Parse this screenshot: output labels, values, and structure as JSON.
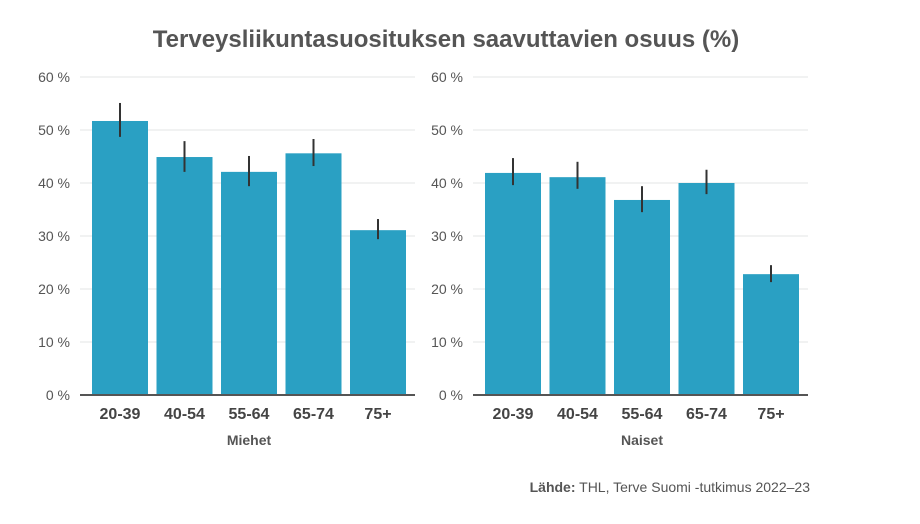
{
  "chart_data": [
    {
      "type": "bar",
      "title": "Terveysliikuntasuosituksen saavuttavien osuus (%)",
      "xlabel": "Miehet",
      "categories": [
        "20-39",
        "40-54",
        "55-64",
        "65-74",
        "75+"
      ],
      "values": [
        51.7,
        44.9,
        42.1,
        45.6,
        31.1
      ],
      "error_low": [
        48.7,
        42.1,
        39.4,
        43.2,
        29.4
      ],
      "error_high": [
        55.1,
        47.9,
        45.1,
        48.3,
        33.2
      ],
      "ylim": [
        0,
        60
      ],
      "yticks": [
        0,
        10,
        20,
        30,
        40,
        50,
        60
      ],
      "ytick_labels": [
        "0 %",
        "10 %",
        "20 %",
        "30 %",
        "40 %",
        "50 %",
        "60 %"
      ],
      "grid": true,
      "color": "#2aa0c3"
    },
    {
      "type": "bar",
      "xlabel": "Naiset",
      "categories": [
        "20-39",
        "40-54",
        "55-64",
        "65-74",
        "75+"
      ],
      "values": [
        41.9,
        41.1,
        36.8,
        40.0,
        22.8
      ],
      "error_low": [
        39.6,
        38.9,
        34.5,
        37.9,
        21.3
      ],
      "error_high": [
        44.7,
        44.0,
        39.4,
        42.5,
        24.5
      ],
      "ylim": [
        0,
        60
      ],
      "yticks": [
        0,
        10,
        20,
        30,
        40,
        50,
        60
      ],
      "ytick_labels": [
        "0 %",
        "10 %",
        "20 %",
        "30 %",
        "40 %",
        "50 %",
        "60 %"
      ],
      "grid": true,
      "color": "#2aa0c3"
    }
  ],
  "title": "Terveysliikuntasuosituksen saavuttavien osuus (%)",
  "source": {
    "label": "Lähde:",
    "text": " THL, Terve Suomi -tutkimus 2022–23"
  }
}
